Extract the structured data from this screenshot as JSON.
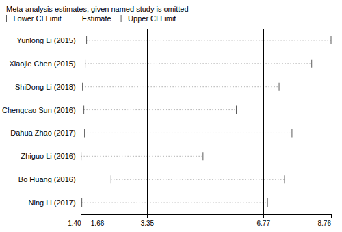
{
  "chart_data": {
    "type": "forest",
    "title": "Meta-analysis estimates, given named study is omitted",
    "categories": [
      "Yunlong Li (2015)",
      "Xiaojie Chen (2015)",
      "ShiDong Li (2018)",
      "Chengcao Sun (2016)",
      "Dahua Zhao (2017)",
      "Zhiguo Li (2016)",
      "Bo Huang (2016)",
      "Ning Li (2017)"
    ],
    "series": [
      {
        "name": "Lower CI Limit",
        "values": [
          1.56,
          1.52,
          1.44,
          1.48,
          1.5,
          1.4,
          2.28,
          1.42
        ]
      },
      {
        "name": "Estimate",
        "values": [
          3.7,
          3.54,
          3.22,
          2.86,
          3.36,
          2.62,
          4.23,
          3.12
        ]
      },
      {
        "name": "Upper CI Limit",
        "values": [
          8.76,
          8.19,
          7.23,
          5.97,
          7.61,
          4.99,
          7.39,
          6.89
        ]
      }
    ],
    "reference_lines": [
      1.66,
      3.35,
      6.77
    ],
    "xlim": [
      1.4,
      8.76
    ],
    "xticks": [
      {
        "value": 1.4,
        "label": "1.40"
      },
      1.66,
      3.35,
      6.77,
      8.76
    ],
    "legend": "top",
    "grid": false
  }
}
